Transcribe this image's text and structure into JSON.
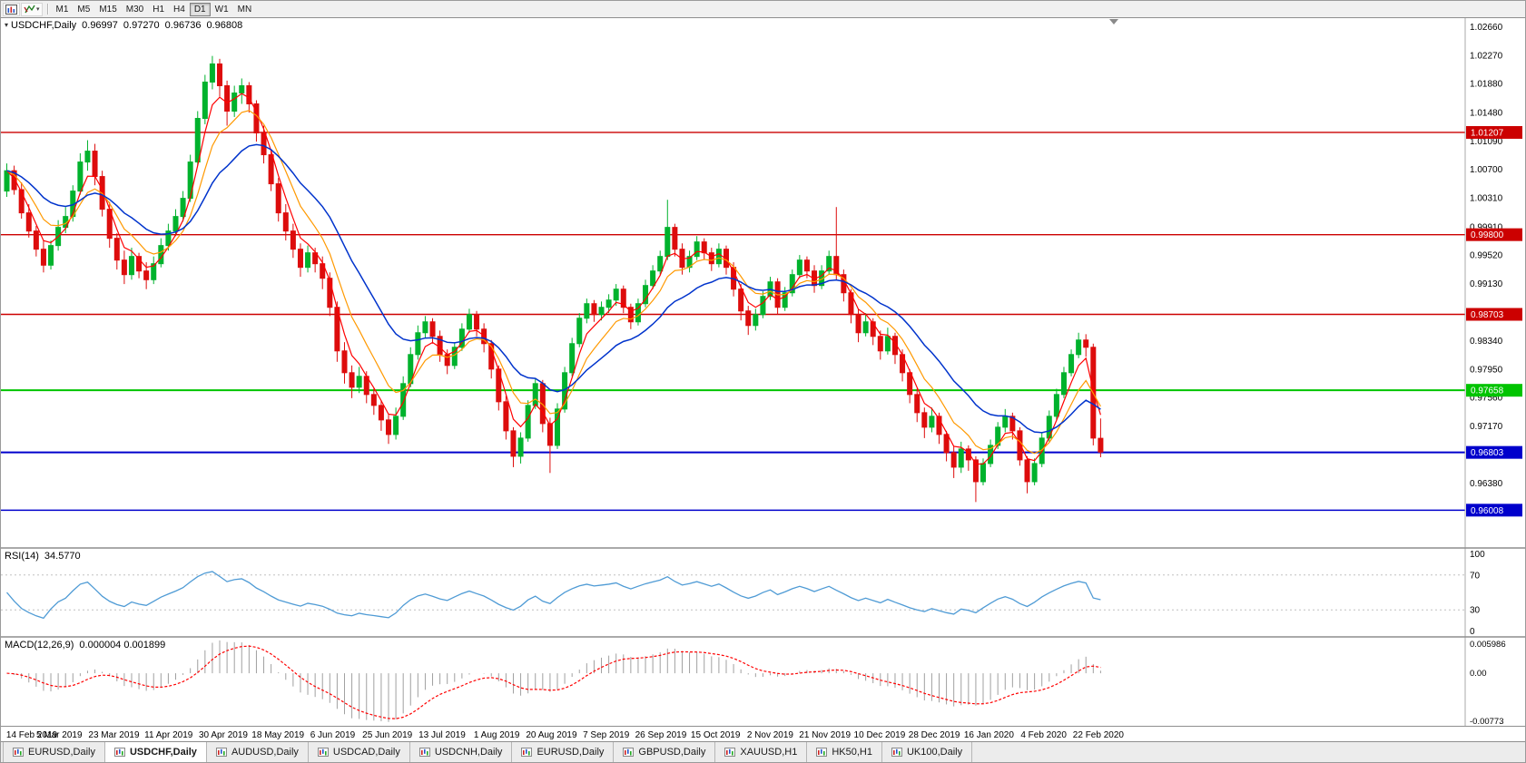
{
  "toolbar": {
    "icons": [
      {
        "name": "chart-window-icon"
      },
      {
        "name": "crosshair-tool-icon",
        "dropdown": true
      }
    ],
    "timeframes": [
      {
        "label": "M1"
      },
      {
        "label": "M5"
      },
      {
        "label": "M15"
      },
      {
        "label": "M30"
      },
      {
        "label": "H1"
      },
      {
        "label": "H4"
      },
      {
        "label": "D1",
        "active": true
      },
      {
        "label": "W1"
      },
      {
        "label": "MN"
      }
    ]
  },
  "chart": {
    "legend": {
      "expand_glyph": "▾",
      "symbol": "USDCHF,Daily",
      "open": "0.96997",
      "high": "0.97270",
      "low": "0.96736",
      "close": "0.96808"
    }
  },
  "rsi": {
    "label": "RSI(14)",
    "value": "34.5770",
    "axis_labels": [
      "100",
      "70",
      "30",
      "0"
    ],
    "upper_level": 70,
    "lower_level": 30
  },
  "macd": {
    "label": "MACD(12,26,9)",
    "values": "0.000004 0.001899",
    "axis_max": "0.005986",
    "axis_zero": "0.00",
    "axis_min": "-0.00773"
  },
  "tabs": {
    "items": [
      {
        "label": "EURUSD,Daily"
      },
      {
        "label": "USDCHF,Daily",
        "active": true
      },
      {
        "label": "AUDUSD,Daily"
      },
      {
        "label": "USDCAD,Daily"
      },
      {
        "label": "USDCNH,Daily"
      },
      {
        "label": "EURUSD,Daily"
      },
      {
        "label": "GBPUSD,Daily"
      },
      {
        "label": "XAUUSD,H1"
      },
      {
        "label": "HK50,H1"
      },
      {
        "label": "UK100,Daily"
      }
    ]
  },
  "colors": {
    "candle_up": "#00b22d",
    "candle_down": "#dd0c0c",
    "ma_fast": "#ff0000",
    "ma_mid": "#ff9900",
    "ma_slow": "#0033cc",
    "rsi_line": "#4f9bd5",
    "macd_hist": "#a0a0a0",
    "macd_signal": "#ff0000",
    "level_red": "#cc0000",
    "level_green": "#00c400",
    "level_blue": "#0000cc"
  },
  "chart_data": {
    "type": "candlestick",
    "symbol": "USDCHF",
    "timeframe": "Daily",
    "y_range": [
      0.955,
      1.0278
    ],
    "y_axis_labels": [
      "1.02660",
      "1.02270",
      "1.01880",
      "1.01480",
      "1.01090",
      "1.00700",
      "1.00310",
      "0.99910",
      "0.99520",
      "0.99130",
      "0.98730",
      "0.98340",
      "0.97950",
      "0.97560",
      "0.97170",
      "0.96380"
    ],
    "x_dates": [
      "14 Feb 2019",
      "5 Mar 2019",
      "23 Mar 2019",
      "11 Apr 2019",
      "30 Apr 2019",
      "18 May 2019",
      "6 Jun 2019",
      "25 Jun 2019",
      "13 Jul 2019",
      "1 Aug 2019",
      "20 Aug 2019",
      "7 Sep 2019",
      "26 Sep 2019",
      "15 Oct 2019",
      "2 Nov 2019",
      "21 Nov 2019",
      "10 Dec 2019",
      "28 Dec 2019",
      "16 Jan 2020",
      "4 Feb 2020",
      "22 Feb 2020"
    ],
    "levels": [
      {
        "price": 1.01207,
        "label": "1.01207",
        "color": "#cc0000",
        "lw": 1.4
      },
      {
        "price": 0.998,
        "label": "0.99800",
        "color": "#cc0000",
        "lw": 1.4
      },
      {
        "price": 0.98703,
        "label": "0.98703",
        "color": "#cc0000",
        "lw": 1.4
      },
      {
        "price": 0.97658,
        "label": "0.97658",
        "color": "#00c400",
        "lw": 2.0
      },
      {
        "price": 0.96803,
        "label": "0.96803",
        "color": "#0000cc",
        "lw": 2.0
      },
      {
        "price": 0.96008,
        "label": "0.96008",
        "color": "#0000cc",
        "lw": 1.5
      }
    ],
    "candles": [
      [
        1.004,
        1.0078,
        1.0032,
        1.0068
      ],
      [
        1.0068,
        1.0075,
        1.0035,
        1.0042
      ],
      [
        1.0042,
        1.0052,
        1.0002,
        1.001
      ],
      [
        1.001,
        1.0022,
        0.9976,
        0.9985
      ],
      [
        0.9985,
        0.9992,
        0.995,
        0.996
      ],
      [
        0.996,
        0.9972,
        0.9928,
        0.9938
      ],
      [
        0.9938,
        0.9972,
        0.9932,
        0.9965
      ],
      [
        0.9965,
        1.0,
        0.9958,
        0.999
      ],
      [
        0.999,
        1.0018,
        0.9982,
        1.0005
      ],
      [
        1.0005,
        1.0048,
        0.9998,
        1.004
      ],
      [
        1.004,
        1.0092,
        1.0035,
        1.008
      ],
      [
        1.008,
        1.011,
        1.0068,
        1.0095
      ],
      [
        1.0095,
        1.0105,
        1.0048,
        1.006
      ],
      [
        1.006,
        1.0068,
        1.0005,
        1.0015
      ],
      [
        1.0015,
        1.0025,
        0.9962,
        0.9975
      ],
      [
        0.9975,
        0.9982,
        0.9932,
        0.9945
      ],
      [
        0.9945,
        0.9958,
        0.9912,
        0.9925
      ],
      [
        0.9925,
        0.9962,
        0.9918,
        0.995
      ],
      [
        0.995,
        0.9955,
        0.992,
        0.993
      ],
      [
        0.993,
        0.9942,
        0.9905,
        0.9918
      ],
      [
        0.9918,
        0.995,
        0.9912,
        0.994
      ],
      [
        0.994,
        0.9975,
        0.9935,
        0.9965
      ],
      [
        0.9965,
        0.9995,
        0.9958,
        0.9985
      ],
      [
        0.9985,
        1.0015,
        0.9978,
        1.0005
      ],
      [
        1.0005,
        1.004,
        0.9998,
        1.003
      ],
      [
        1.003,
        1.009,
        1.0025,
        1.008
      ],
      [
        1.008,
        1.015,
        1.0075,
        1.014
      ],
      [
        1.014,
        1.02,
        1.0132,
        1.019
      ],
      [
        1.019,
        1.0226,
        1.018,
        1.0215
      ],
      [
        1.0215,
        1.0222,
        1.017,
        1.0185
      ],
      [
        1.0185,
        1.0192,
        1.013,
        1.015
      ],
      [
        1.015,
        1.0185,
        1.0142,
        1.0175
      ],
      [
        1.0175,
        1.0195,
        1.016,
        1.0185
      ],
      [
        1.0185,
        1.019,
        1.0148,
        1.016
      ],
      [
        1.016,
        1.0165,
        1.0108,
        1.012
      ],
      [
        1.012,
        1.013,
        1.0078,
        1.009
      ],
      [
        1.009,
        1.0098,
        1.004,
        1.005
      ],
      [
        1.005,
        1.0058,
        0.9998,
        1.001
      ],
      [
        1.001,
        1.0022,
        0.9972,
        0.9985
      ],
      [
        0.9985,
        0.9995,
        0.9948,
        0.996
      ],
      [
        0.996,
        0.9968,
        0.9922,
        0.9935
      ],
      [
        0.9935,
        0.9965,
        0.9928,
        0.9955
      ],
      [
        0.9955,
        0.9962,
        0.9928,
        0.994
      ],
      [
        0.994,
        0.995,
        0.9905,
        0.992
      ],
      [
        0.992,
        0.9928,
        0.9868,
        0.988
      ],
      [
        0.988,
        0.9888,
        0.9805,
        0.982
      ],
      [
        0.982,
        0.9832,
        0.9775,
        0.979
      ],
      [
        0.979,
        0.98,
        0.9755,
        0.977
      ],
      [
        0.977,
        0.9798,
        0.9762,
        0.9785
      ],
      [
        0.9785,
        0.9792,
        0.9748,
        0.976
      ],
      [
        0.976,
        0.9768,
        0.9732,
        0.9745
      ],
      [
        0.9745,
        0.9752,
        0.971,
        0.9725
      ],
      [
        0.9725,
        0.9732,
        0.9692,
        0.9705
      ],
      [
        0.9705,
        0.9742,
        0.9698,
        0.973
      ],
      [
        0.973,
        0.9785,
        0.9725,
        0.9775
      ],
      [
        0.9775,
        0.9825,
        0.977,
        0.9815
      ],
      [
        0.9815,
        0.9855,
        0.9808,
        0.9845
      ],
      [
        0.9845,
        0.9868,
        0.9838,
        0.986
      ],
      [
        0.986,
        0.9865,
        0.983,
        0.984
      ],
      [
        0.984,
        0.9848,
        0.9805,
        0.9815
      ],
      [
        0.9815,
        0.9822,
        0.9788,
        0.98
      ],
      [
        0.98,
        0.9832,
        0.9795,
        0.9825
      ],
      [
        0.9825,
        0.9858,
        0.982,
        0.985
      ],
      [
        0.985,
        0.9878,
        0.9845,
        0.987
      ],
      [
        0.987,
        0.9875,
        0.984,
        0.985
      ],
      [
        0.985,
        0.9858,
        0.9818,
        0.983
      ],
      [
        0.983,
        0.9835,
        0.9782,
        0.9795
      ],
      [
        0.9795,
        0.98,
        0.9738,
        0.975
      ],
      [
        0.975,
        0.9758,
        0.9698,
        0.971
      ],
      [
        0.971,
        0.9715,
        0.966,
        0.9675
      ],
      [
        0.9675,
        0.9708,
        0.9665,
        0.97
      ],
      [
        0.97,
        0.9752,
        0.9695,
        0.9745
      ],
      [
        0.9745,
        0.9782,
        0.974,
        0.9775
      ],
      [
        0.9775,
        0.978,
        0.9708,
        0.972
      ],
      [
        0.972,
        0.9728,
        0.9652,
        0.969
      ],
      [
        0.969,
        0.9748,
        0.9685,
        0.974
      ],
      [
        0.974,
        0.9798,
        0.9735,
        0.979
      ],
      [
        0.979,
        0.9838,
        0.9785,
        0.983
      ],
      [
        0.983,
        0.9872,
        0.9825,
        0.9865
      ],
      [
        0.9865,
        0.9892,
        0.9858,
        0.9885
      ],
      [
        0.9885,
        0.989,
        0.986,
        0.987
      ],
      [
        0.987,
        0.9888,
        0.9862,
        0.988
      ],
      [
        0.988,
        0.9898,
        0.9872,
        0.989
      ],
      [
        0.989,
        0.9912,
        0.9882,
        0.9905
      ],
      [
        0.9905,
        0.991,
        0.9872,
        0.988
      ],
      [
        0.988,
        0.9885,
        0.985,
        0.986
      ],
      [
        0.986,
        0.9892,
        0.9855,
        0.9885
      ],
      [
        0.9885,
        0.9918,
        0.988,
        0.991
      ],
      [
        0.991,
        0.9938,
        0.9905,
        0.993
      ],
      [
        0.993,
        0.9958,
        0.9925,
        0.995
      ],
      [
        0.995,
        1.0028,
        0.9945,
        0.999
      ],
      [
        0.999,
        0.9995,
        0.995,
        0.996
      ],
      [
        0.996,
        0.9968,
        0.9925,
        0.9935
      ],
      [
        0.9935,
        0.9958,
        0.9928,
        0.995
      ],
      [
        0.995,
        0.9978,
        0.9945,
        0.997
      ],
      [
        0.997,
        0.9975,
        0.9945,
        0.9955
      ],
      [
        0.9955,
        0.9962,
        0.993,
        0.994
      ],
      [
        0.994,
        0.9968,
        0.9935,
        0.996
      ],
      [
        0.996,
        0.9965,
        0.9925,
        0.9935
      ],
      [
        0.9935,
        0.9942,
        0.9895,
        0.9905
      ],
      [
        0.9905,
        0.9912,
        0.9862,
        0.9875
      ],
      [
        0.9875,
        0.9882,
        0.9842,
        0.9855
      ],
      [
        0.9855,
        0.9878,
        0.9848,
        0.987
      ],
      [
        0.987,
        0.9902,
        0.9865,
        0.9895
      ],
      [
        0.9895,
        0.9922,
        0.989,
        0.9915
      ],
      [
        0.9915,
        0.992,
        0.987,
        0.988
      ],
      [
        0.988,
        0.9908,
        0.9875,
        0.99
      ],
      [
        0.99,
        0.9932,
        0.9895,
        0.9925
      ],
      [
        0.9925,
        0.9952,
        0.992,
        0.9945
      ],
      [
        0.9945,
        0.995,
        0.992,
        0.993
      ],
      [
        0.993,
        0.9938,
        0.99,
        0.991
      ],
      [
        0.991,
        0.9938,
        0.9905,
        0.993
      ],
      [
        0.993,
        0.9958,
        0.9925,
        0.995
      ],
      [
        0.995,
        1.0018,
        0.9918,
        0.9925
      ],
      [
        0.9925,
        0.9932,
        0.9888,
        0.99
      ],
      [
        0.99,
        0.9905,
        0.9858,
        0.987
      ],
      [
        0.987,
        0.9878,
        0.9832,
        0.9845
      ],
      [
        0.9845,
        0.9872,
        0.984,
        0.986
      ],
      [
        0.986,
        0.9865,
        0.9828,
        0.984
      ],
      [
        0.984,
        0.9848,
        0.9808,
        0.982
      ],
      [
        0.982,
        0.9852,
        0.9815,
        0.984
      ],
      [
        0.984,
        0.9845,
        0.9802,
        0.9815
      ],
      [
        0.9815,
        0.9822,
        0.9778,
        0.979
      ],
      [
        0.979,
        0.9795,
        0.9748,
        0.976
      ],
      [
        0.976,
        0.9768,
        0.9722,
        0.9735
      ],
      [
        0.9735,
        0.9742,
        0.97,
        0.9715
      ],
      [
        0.9715,
        0.9742,
        0.9708,
        0.973
      ],
      [
        0.973,
        0.9735,
        0.9692,
        0.9705
      ],
      [
        0.9705,
        0.971,
        0.9668,
        0.968
      ],
      [
        0.968,
        0.9688,
        0.9645,
        0.966
      ],
      [
        0.966,
        0.9695,
        0.9652,
        0.9685
      ],
      [
        0.9685,
        0.969,
        0.9655,
        0.967
      ],
      [
        0.967,
        0.9675,
        0.9612,
        0.964
      ],
      [
        0.964,
        0.9672,
        0.9635,
        0.9665
      ],
      [
        0.9665,
        0.9698,
        0.966,
        0.969
      ],
      [
        0.969,
        0.9722,
        0.9685,
        0.9715
      ],
      [
        0.9715,
        0.974,
        0.9708,
        0.973
      ],
      [
        0.973,
        0.9735,
        0.9698,
        0.971
      ],
      [
        0.971,
        0.9715,
        0.9662,
        0.967
      ],
      [
        0.967,
        0.9675,
        0.9624,
        0.964
      ],
      [
        0.964,
        0.9672,
        0.9635,
        0.9665
      ],
      [
        0.9665,
        0.9708,
        0.966,
        0.97
      ],
      [
        0.97,
        0.9738,
        0.9695,
        0.973
      ],
      [
        0.973,
        0.9768,
        0.9725,
        0.976
      ],
      [
        0.976,
        0.9798,
        0.9755,
        0.979
      ],
      [
        0.979,
        0.9822,
        0.9785,
        0.9815
      ],
      [
        0.9815,
        0.9845,
        0.981,
        0.9835
      ],
      [
        0.9835,
        0.9843,
        0.9812,
        0.9825
      ],
      [
        0.9825,
        0.983,
        0.969,
        0.97
      ],
      [
        0.96997,
        0.9727,
        0.96736,
        0.96808
      ]
    ]
  }
}
